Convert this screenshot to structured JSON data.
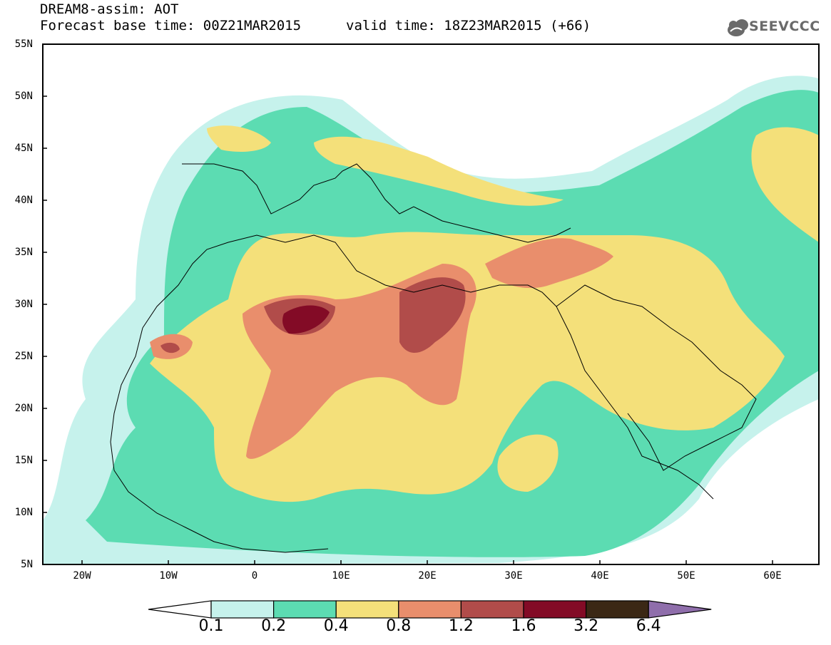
{
  "header": {
    "title": "DREAM8-assim: AOT",
    "base_time": "Forecast base time: 00Z21MAR2015",
    "valid_time": "valid time: 18Z23MAR2015 (+66)",
    "logo_text": "SEEVCCC"
  },
  "map": {
    "lon_range": [
      -25,
      65
    ],
    "lat_range": [
      5,
      55
    ],
    "lat_ticks": [
      "5N",
      "10N",
      "15N",
      "20N",
      "25N",
      "30N",
      "35N",
      "40N",
      "45N",
      "50N",
      "55N"
    ],
    "lon_ticks": [
      "20W",
      "10W",
      "0",
      "10E",
      "20E",
      "30E",
      "40E",
      "50E",
      "60E"
    ],
    "field": "Aerosol optical thickness"
  },
  "colorbar": {
    "labels": [
      "0.1",
      "0.2",
      "0.4",
      "0.8",
      "1.2",
      "1.6",
      "3.2",
      "6.4"
    ],
    "colors": [
      "#ffffff",
      "#c6f2ec",
      "#5cdcb2",
      "#f4e07a",
      "#e98e6c",
      "#b14c4a",
      "#830b26",
      "#3b2815",
      "#8f6eab"
    ]
  }
}
